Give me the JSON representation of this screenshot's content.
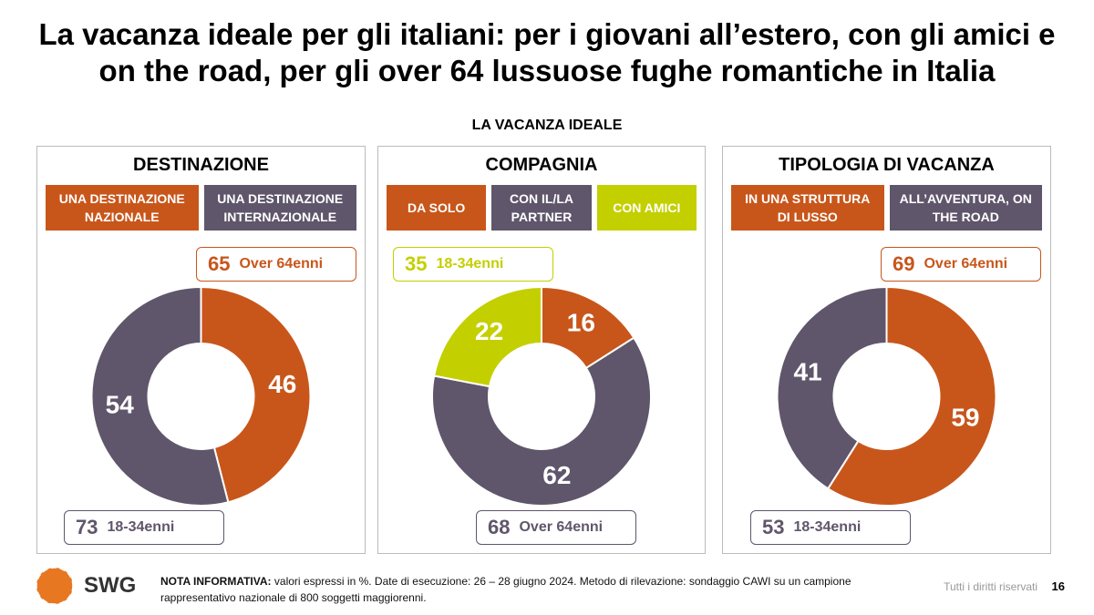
{
  "title": "La vacanza ideale per gli italiani: per i giovani all’estero, con gli amici e on the road, per gli over 64 lussuose fughe romantiche in Italia",
  "subtitle": "LA VACANZA IDEALE",
  "chart_data": [
    {
      "type": "donut",
      "title": "DESTINAZIONE",
      "categories": [
        "UNA DESTINAZIONE NAZIONALE",
        "UNA DESTINAZIONE INTERNAZIONALE"
      ],
      "values": [
        46,
        54
      ],
      "colors": [
        "#c8561b",
        "#5f566b"
      ],
      "callouts": [
        {
          "value": 65,
          "label": "Over 64enni",
          "color": "#c8561b"
        },
        {
          "value": 73,
          "label": "18-34enni",
          "color": "#5f566b"
        }
      ]
    },
    {
      "type": "donut",
      "title": "COMPAGNIA",
      "categories": [
        "DA SOLO",
        "CON IL/LA PARTNER",
        "CON AMICI"
      ],
      "values": [
        16,
        62,
        22
      ],
      "colors": [
        "#c8561b",
        "#5f566b",
        "#c4cf00"
      ],
      "callouts": [
        {
          "value": 35,
          "label": "18-34enni",
          "color": "#c4cf00"
        },
        {
          "value": 68,
          "label": "Over 64enni",
          "color": "#5f566b"
        }
      ]
    },
    {
      "type": "donut",
      "title": "TIPOLOGIA DI VACANZA",
      "categories": [
        "IN UNA STRUTTURA DI LUSSO",
        "ALL’AVVENTURA, ON THE ROAD"
      ],
      "values": [
        59,
        41
      ],
      "colors": [
        "#c8561b",
        "#5f566b"
      ],
      "callouts": [
        {
          "value": 69,
          "label": "Over 64enni",
          "color": "#c8561b"
        },
        {
          "value": 53,
          "label": "18-34enni",
          "color": "#5f566b"
        }
      ]
    }
  ],
  "footer": {
    "logo": "SWG",
    "note_label": "NOTA INFORMATIVA:",
    "note": "valori espressi in %. Date di esecuzione: 26 – 28 giugno 2024. Metodo di rilevazione: sondaggio CAWI su un campione rappresentativo nazionale di 800 soggetti maggiorenni.",
    "rights": "Tutti i diritti riservati",
    "page": "16"
  }
}
